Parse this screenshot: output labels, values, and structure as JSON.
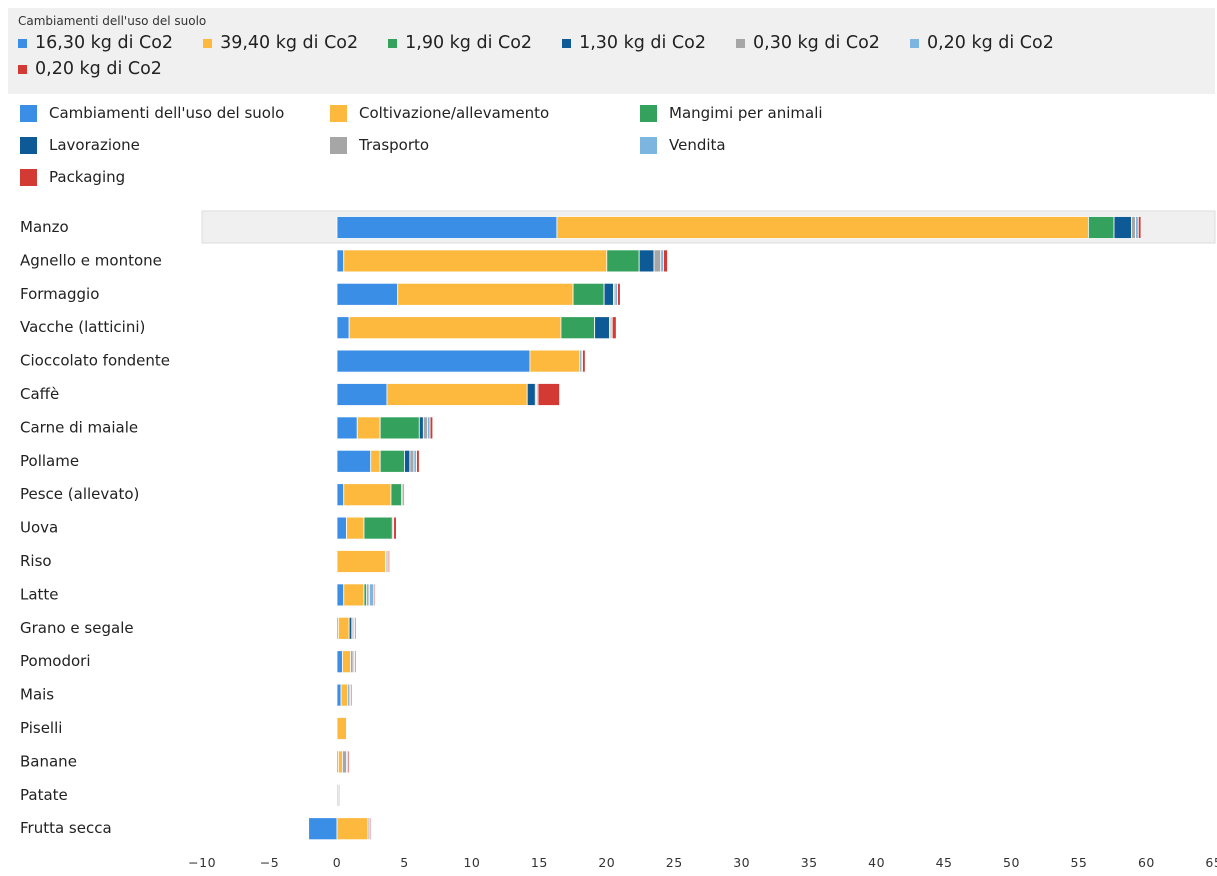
{
  "tooltip": {
    "title": "Cambiamenti dell'uso del suolo",
    "items": [
      {
        "text": "16,30 kg di Co2",
        "color": "#3a8ee6"
      },
      {
        "text": "39,40 kg di Co2",
        "color": "#fdb93d"
      },
      {
        "text": "1,90 kg di Co2",
        "color": "#34a25c"
      },
      {
        "text": "1,30 kg di Co2",
        "color": "#0e5a96"
      },
      {
        "text": "0,30 kg di Co2",
        "color": "#a6a6a6"
      },
      {
        "text": "0,20 kg di Co2",
        "color": "#7cb5e0"
      },
      {
        "text": "0,20 kg di Co2",
        "color": "#d33a34"
      }
    ]
  },
  "chart_data": {
    "type": "bar",
    "orientation": "horizontal",
    "stacked": true,
    "categories": [
      "Manzo",
      "Agnello e montone",
      "Formaggio",
      "Vacche (latticini)",
      "Cioccolato fondente",
      "Caffè",
      "Carne di maiale",
      "Pollame",
      "Pesce (allevato)",
      "Uova",
      "Riso",
      "Latte",
      "Grano e segale",
      "Pomodori",
      "Mais",
      "Piselli",
      "Banane",
      "Patate",
      "Frutta secca"
    ],
    "highlighted_category": "Manzo",
    "series": [
      {
        "name": "Cambiamenti dell'uso del suolo",
        "color": "#3a8ee6",
        "values": [
          16.3,
          0.5,
          4.5,
          0.9,
          14.3,
          3.7,
          1.5,
          2.5,
          0.5,
          0.7,
          0,
          0.5,
          0.1,
          0.4,
          0.3,
          0,
          0.1,
          0,
          -2.1
        ]
      },
      {
        "name": "Coltivazione/allevamento",
        "color": "#fdb93d",
        "values": [
          39.4,
          19.5,
          13.0,
          15.7,
          3.7,
          10.4,
          1.7,
          0.7,
          3.5,
          1.3,
          3.6,
          1.5,
          0.8,
          0.6,
          0.5,
          0.7,
          0.3,
          0.1,
          2.3
        ]
      },
      {
        "name": "Mangimi per animali",
        "color": "#34a25c",
        "values": [
          1.9,
          2.4,
          2.3,
          2.5,
          0,
          0,
          2.9,
          1.8,
          0.8,
          2.1,
          0,
          0.2,
          0,
          0,
          0,
          0,
          0,
          0,
          0
        ]
      },
      {
        "name": "Lavorazione",
        "color": "#0e5a96",
        "values": [
          1.3,
          1.1,
          0.7,
          1.1,
          0.1,
          0.6,
          0.3,
          0.4,
          0,
          0,
          0,
          0.1,
          0.2,
          0,
          0.1,
          0,
          0,
          0,
          0
        ]
      },
      {
        "name": "Trasporto",
        "color": "#a6a6a6",
        "values": [
          0.3,
          0.5,
          0.1,
          0.1,
          0.1,
          0.1,
          0.3,
          0.3,
          0.1,
          0.1,
          0.1,
          0.1,
          0.1,
          0.2,
          0.1,
          0,
          0.3,
          0.1,
          0.1
        ]
      },
      {
        "name": "Vendita",
        "color": "#7cb5e0",
        "values": [
          0.2,
          0.2,
          0.2,
          0.1,
          0,
          0.1,
          0.2,
          0.2,
          0,
          0,
          0.1,
          0.3,
          0.1,
          0.1,
          0,
          0,
          0.1,
          0,
          0
        ]
      },
      {
        "name": "Packaging",
        "color": "#d33a34",
        "values": [
          0.2,
          0.3,
          0.2,
          0.3,
          0.2,
          1.6,
          0.2,
          0.2,
          0.1,
          0.2,
          0.1,
          0.1,
          0.1,
          0.1,
          0.1,
          0,
          0.1,
          0,
          0.1
        ]
      }
    ],
    "xlim": [
      -10,
      65
    ],
    "xticks": [
      "−10",
      "−5",
      "0",
      "5",
      "10",
      "15",
      "20",
      "25",
      "30",
      "35",
      "40",
      "45",
      "50",
      "55",
      "60",
      "65"
    ],
    "legend_position": "top",
    "grid": false
  }
}
